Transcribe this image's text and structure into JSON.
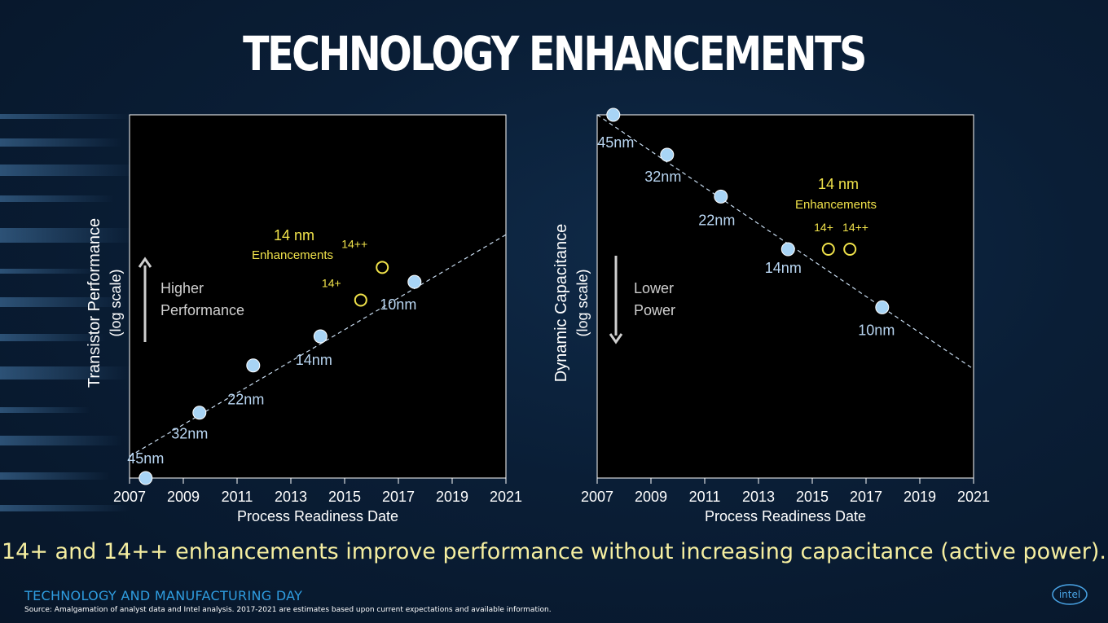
{
  "title": "TECHNOLOGY ENHANCEMENTS",
  "caption": "14+ and 14++ enhancements improve performance without increasing capacitance (active power).",
  "footer": {
    "event": "TECHNOLOGY AND MANUFACTURING DAY",
    "source": "Source: Amalgamation of analyst data and Intel analysis. 2017-2021 are estimates based upon current expectations and available information.",
    "logo_text": "intel"
  },
  "colors": {
    "point": "#a8d4f5",
    "enhancement": "#f0e24a",
    "label": "#b9d6f2",
    "caption": "#f5eea0",
    "event": "#2f9de0"
  },
  "chart_data": [
    {
      "type": "scatter",
      "xlabel": "Process Readiness Date",
      "ylabel": "Transistor Performance",
      "ylabel_sub": "(log scale)",
      "xticks": [
        "2007",
        "2009",
        "2011",
        "2013",
        "2015",
        "2017",
        "2019",
        "2021"
      ],
      "xlim": [
        2007,
        2021
      ],
      "ylim": [
        0,
        100
      ],
      "direction_text": [
        "Higher",
        "Performance"
      ],
      "direction": "up",
      "points": [
        {
          "label": "45nm",
          "x": 2007.6,
          "y": 0
        },
        {
          "label": "32nm",
          "x": 2009.6,
          "y": 18
        },
        {
          "label": "22nm",
          "x": 2011.6,
          "y": 31
        },
        {
          "label": "14nm",
          "x": 2014.1,
          "y": 39
        },
        {
          "label": "10nm",
          "x": 2017.6,
          "y": 54
        }
      ],
      "enhancements": [
        {
          "label": "14+",
          "x": 2015.6,
          "y": 49
        },
        {
          "label": "14++",
          "x": 2016.4,
          "y": 58
        }
      ],
      "enhancement_title": "14 nm",
      "enhancement_subtitle": "Enhancements",
      "trend": {
        "x0": 2007,
        "y0": 6,
        "x1": 2021,
        "y1": 67
      }
    },
    {
      "type": "scatter",
      "xlabel": "Process Readiness Date",
      "ylabel": "Dynamic Capacitance",
      "ylabel_sub": "(log scale)",
      "xticks": [
        "2007",
        "2009",
        "2011",
        "2013",
        "2015",
        "2017",
        "2019",
        "2021"
      ],
      "xlim": [
        2007,
        2021
      ],
      "ylim": [
        0,
        100
      ],
      "direction_text": [
        "Lower",
        "Power"
      ],
      "direction": "down",
      "points": [
        {
          "label": "45nm",
          "x": 2007.6,
          "y": 100
        },
        {
          "label": "32nm",
          "x": 2009.6,
          "y": 89
        },
        {
          "label": "22nm",
          "x": 2011.6,
          "y": 77.5
        },
        {
          "label": "14nm",
          "x": 2014.1,
          "y": 63
        },
        {
          "label": "10nm",
          "x": 2017.6,
          "y": 47
        }
      ],
      "enhancements": [
        {
          "label": "14+",
          "x": 2015.6,
          "y": 63
        },
        {
          "label": "14++",
          "x": 2016.4,
          "y": 63
        }
      ],
      "enhancement_title": "14 nm",
      "enhancement_subtitle": "Enhancements",
      "trend": {
        "x0": 2007,
        "y0": 100,
        "x1": 2021,
        "y1": 30
      }
    }
  ]
}
